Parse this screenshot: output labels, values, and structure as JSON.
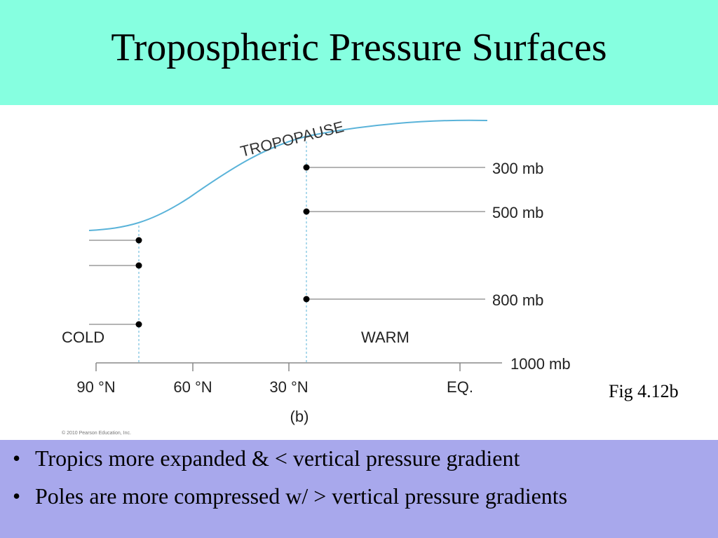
{
  "title": "Tropospheric Pressure Surfaces",
  "diagram": {
    "tropopause_label": "TROPOPAUSE",
    "levels": [
      "300 mb",
      "500 mb",
      "800 mb"
    ],
    "surface_level": "1000 mb",
    "cold_label": "COLD",
    "warm_label": "WARM",
    "latitudes": [
      "90 °N",
      "60 °N",
      "30 °N",
      "EQ."
    ],
    "panel_label": "(b)",
    "copyright": "© 2010 Pearson Education, Inc.",
    "colors": {
      "tropopause": "#5ab3d9",
      "guide": "#5ab3d9",
      "line": "#888888",
      "dot": "#000000"
    }
  },
  "caption": "Fig 4.12b",
  "bullets": [
    "Tropics more expanded & < vertical pressure gradient",
    "Poles are more compressed w/ > vertical pressure gradients"
  ],
  "bullet_symbol": "•",
  "colors": {
    "header_bg": "#86ffe0",
    "bullets_bg": "#a8a8ec"
  }
}
